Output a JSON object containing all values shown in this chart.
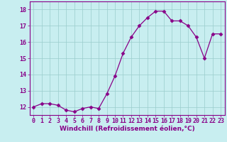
{
  "x": [
    0,
    1,
    2,
    3,
    4,
    5,
    6,
    7,
    8,
    9,
    10,
    11,
    12,
    13,
    14,
    15,
    16,
    17,
    18,
    19,
    20,
    21,
    22,
    23
  ],
  "y": [
    12.0,
    12.2,
    12.2,
    12.1,
    11.8,
    11.7,
    11.9,
    12.0,
    11.9,
    12.8,
    13.9,
    15.3,
    16.3,
    17.0,
    17.5,
    17.9,
    17.9,
    17.3,
    17.3,
    17.0,
    16.3,
    15.0,
    16.5,
    16.5
  ],
  "line_color": "#880088",
  "marker": "D",
  "marker_size": 2.5,
  "bg_color": "#c8eef0",
  "grid_color": "#99cccc",
  "xlabel": "Windchill (Refroidissement éolien,°C)",
  "ylim": [
    11.5,
    18.5
  ],
  "xlim": [
    -0.5,
    23.5
  ],
  "yticks": [
    12,
    13,
    14,
    15,
    16,
    17,
    18
  ],
  "xticks": [
    0,
    1,
    2,
    3,
    4,
    5,
    6,
    7,
    8,
    9,
    10,
    11,
    12,
    13,
    14,
    15,
    16,
    17,
    18,
    19,
    20,
    21,
    22,
    23
  ],
  "xlabel_fontsize": 6.5,
  "tick_fontsize": 6.0
}
